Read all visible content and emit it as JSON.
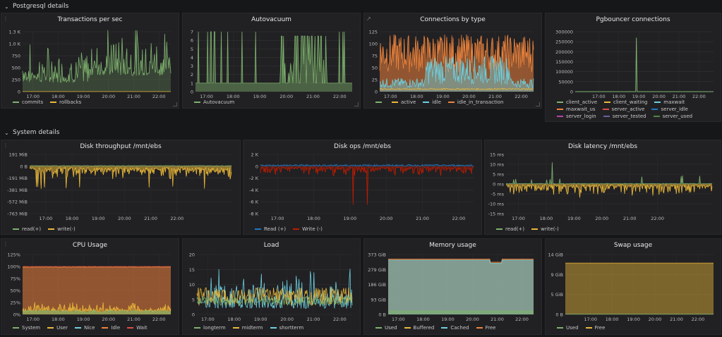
{
  "rows": [
    {
      "title": "Postgresql details"
    },
    {
      "title": "System details"
    }
  ],
  "time_ticks": [
    "17:00",
    "18:00",
    "19:00",
    "20:00",
    "21:00",
    "22:00"
  ],
  "panels": [
    {
      "id": "tps",
      "title": "Transactions per sec",
      "yticks": [
        "1.3 K",
        "1.0 K",
        "750",
        "500",
        "250",
        "0"
      ],
      "legend": [
        {
          "label": "commits",
          "color": "#7eb26d"
        },
        {
          "label": "rollbacks",
          "color": "#eab839"
        }
      ]
    },
    {
      "id": "autovac",
      "title": "Autovacuum",
      "yticks": [
        "7",
        "6",
        "5",
        "4",
        "3",
        "2",
        "1",
        "0"
      ],
      "legend": [
        {
          "label": "Autovacuum",
          "color": "#7eb26d"
        }
      ]
    },
    {
      "id": "conn",
      "title": "Connections by type",
      "yticks": [
        "125",
        "100",
        "75",
        "50",
        "25",
        "0"
      ],
      "legend": [
        {
          "label": "",
          "color": "#7eb26d"
        },
        {
          "label": "active",
          "color": "#eab839"
        },
        {
          "label": "idle",
          "color": "#6ed0e0"
        },
        {
          "label": "idle_in_transaction",
          "color": "#ef843c"
        }
      ]
    },
    {
      "id": "pgb",
      "title": "Pgbouncer connections",
      "yticks": [
        "300000",
        "250000",
        "200000",
        "150000",
        "100000",
        "50000",
        "0"
      ],
      "legend": [
        {
          "label": "client_active",
          "color": "#7eb26d"
        },
        {
          "label": "client_waiting",
          "color": "#eab839"
        },
        {
          "label": "maxwait",
          "color": "#6ed0e0"
        },
        {
          "label": "maxwait_us",
          "color": "#ef843c"
        },
        {
          "label": "server_active",
          "color": "#e24d42"
        },
        {
          "label": "server_idle",
          "color": "#1f78c1"
        },
        {
          "label": "server_login",
          "color": "#ba43a9"
        },
        {
          "label": "server_tested",
          "color": "#705da0"
        },
        {
          "label": "server_used",
          "color": "#508642"
        }
      ]
    },
    {
      "id": "dthr",
      "title": "Disk throughput /mnt/ebs",
      "yticks": [
        "191 MiB",
        "0 B",
        "-191 MiB",
        "-381 MiB",
        "-572 MiB",
        "-763 MiB"
      ],
      "legend": [
        {
          "label": "read(+)",
          "color": "#7eb26d"
        },
        {
          "label": "write(-)",
          "color": "#eab839"
        }
      ]
    },
    {
      "id": "dops",
      "title": "Disk ops /mnt/ebs",
      "yticks": [
        "2 K",
        "0",
        "-2 K",
        "-4 K",
        "-6 K",
        "-8 K"
      ],
      "legend": [
        {
          "label": "Read (+)",
          "color": "#1f78c1"
        },
        {
          "label": "Write (-)",
          "color": "#bf1b00"
        }
      ]
    },
    {
      "id": "dlat",
      "title": "Disk latency /mnt/ebs",
      "yticks": [
        "15 ms",
        "10 ms",
        "5 ms",
        "0 ms",
        "-5 ms",
        "-10 ms",
        "-15 ms"
      ],
      "legend": [
        {
          "label": "read(+)",
          "color": "#7eb26d"
        },
        {
          "label": "write(-)",
          "color": "#eab839"
        }
      ]
    },
    {
      "id": "cpu",
      "title": "CPU Usage",
      "yticks": [
        "125%",
        "100%",
        "75%",
        "50%",
        "25%",
        "0%"
      ],
      "legend": [
        {
          "label": "System",
          "color": "#7eb26d"
        },
        {
          "label": "User",
          "color": "#eab839"
        },
        {
          "label": "Nice",
          "color": "#6ed0e0"
        },
        {
          "label": "Idle",
          "color": "#ef843c"
        },
        {
          "label": "Wait",
          "color": "#e24d42"
        }
      ]
    },
    {
      "id": "load",
      "title": "Load",
      "yticks": [
        "20",
        "15",
        "10",
        "5",
        "0"
      ],
      "legend": [
        {
          "label": "longterm",
          "color": "#7eb26d"
        },
        {
          "label": "midterm",
          "color": "#eab839"
        },
        {
          "label": "shortterm",
          "color": "#6ed0e0"
        }
      ]
    },
    {
      "id": "mem",
      "title": "Memory usage",
      "yticks": [
        "373 GiB",
        "279 GiB",
        "186 GiB",
        "93 GiB",
        "0 B"
      ],
      "legend": [
        {
          "label": "Used",
          "color": "#7eb26d"
        },
        {
          "label": "Buffered",
          "color": "#eab839"
        },
        {
          "label": "Cached",
          "color": "#6ed0e0"
        },
        {
          "label": "Free",
          "color": "#ef843c"
        }
      ]
    },
    {
      "id": "swap",
      "title": "Swap usage",
      "yticks": [
        "14 GiB",
        "9 GiB",
        "5 GiB",
        "0 B"
      ],
      "legend": [
        {
          "label": "Used",
          "color": "#7eb26d"
        },
        {
          "label": "Free",
          "color": "#eab839"
        }
      ]
    }
  ],
  "chart_data": [
    {
      "type": "line",
      "panel": "tps",
      "series": [
        {
          "name": "commits",
          "trend": "spiky 100-1200 per sec, higher 19:45-22:30"
        },
        {
          "name": "rollbacks",
          "level": 0
        }
      ],
      "ylim": [
        0,
        1300
      ]
    },
    {
      "type": "line",
      "panel": "autovac",
      "series": [
        {
          "name": "Autovacuum",
          "note": "mostly 1, bursts to 6-7 between 19:40 and 21:40"
        }
      ],
      "ylim": [
        0,
        7
      ]
    },
    {
      "type": "area",
      "panel": "conn",
      "series": [
        {
          "name": "idle",
          "trend": "20-90"
        },
        {
          "name": "idle_in_transaction",
          "trend": "40-125"
        },
        {
          "name": "active",
          "trend": "~5"
        }
      ],
      "ylim": [
        0,
        125
      ]
    },
    {
      "type": "line",
      "panel": "pgb",
      "series": [
        {
          "name": "maxwait_us",
          "spike": {
            "x": "19:00",
            "y": 270000
          }
        }
      ],
      "ylim": [
        0,
        300000
      ]
    },
    {
      "type": "area",
      "panel": "dthr",
      "series": [
        {
          "name": "read(+)",
          "trend": "0-20 MiB"
        },
        {
          "name": "write(-)",
          "trend": "0 to -500 MiB, mostly -80 MiB"
        }
      ]
    },
    {
      "type": "line",
      "panel": "dops",
      "series": [
        {
          "name": "Read (+)",
          "trend": "0-400"
        },
        {
          "name": "Write (-)",
          "trend": "-200 to -1500, spikes to -6.5 K"
        }
      ]
    },
    {
      "type": "line",
      "panel": "dlat",
      "series": [
        {
          "name": "read(+)",
          "trend": "~0, spike 11 ms at 18:05"
        },
        {
          "name": "write(-)",
          "trend": "~-1 ms, spikes to -9 ms"
        }
      ]
    },
    {
      "type": "area",
      "panel": "cpu",
      "series": [
        {
          "name": "Idle",
          "trend": "~85%"
        },
        {
          "name": "User",
          "trend": "~8%"
        },
        {
          "name": "System",
          "trend": "~4%"
        },
        {
          "name": "Wait",
          "trend": "~0-1%"
        }
      ],
      "ylim": [
        0,
        125
      ]
    },
    {
      "type": "line",
      "panel": "load",
      "series": [
        {
          "name": "shortterm",
          "trend": "0-14"
        },
        {
          "name": "midterm",
          "trend": "2-9"
        },
        {
          "name": "longterm",
          "trend": "2-7"
        }
      ],
      "ylim": [
        0,
        20
      ]
    },
    {
      "type": "area",
      "panel": "mem",
      "series": [
        {
          "name": "Used",
          "value": "~20 GiB"
        },
        {
          "name": "Cached",
          "value": "~330 GiB"
        },
        {
          "name": "Free",
          "value": "~5 GiB"
        }
      ],
      "ylim": [
        0,
        373
      ]
    },
    {
      "type": "area",
      "panel": "swap",
      "series": [
        {
          "name": "Free",
          "value": "~12 GiB"
        },
        {
          "name": "Used",
          "value": "~0"
        }
      ],
      "ylim": [
        0,
        14
      ]
    }
  ]
}
